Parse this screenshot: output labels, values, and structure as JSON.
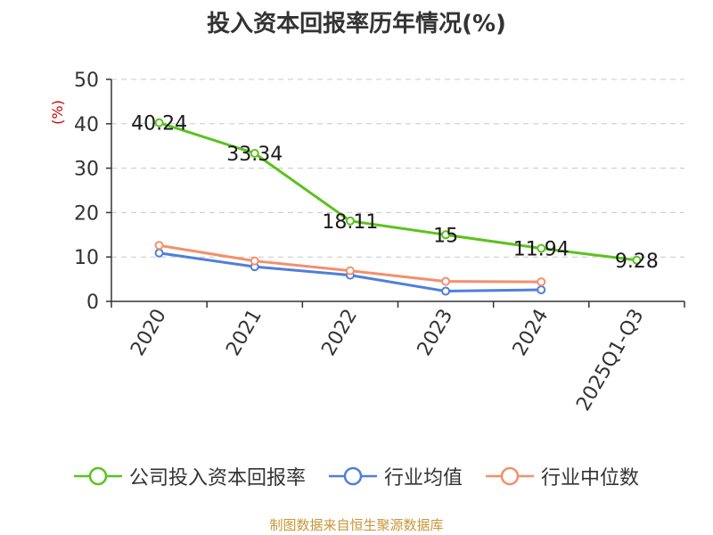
{
  "chart_data": {
    "type": "line",
    "title": "投入资本回报率历年情况(%)",
    "ylabel": "(%)",
    "xlabel": "",
    "categories": [
      "2020",
      "2021",
      "2022",
      "2023",
      "2024",
      "2025Q1-Q3"
    ],
    "ylim": [
      0,
      50
    ],
    "yticks": [
      0,
      10,
      20,
      30,
      40,
      50
    ],
    "grid": true,
    "legend_position": "bottom",
    "series": [
      {
        "name": "公司投入资本回报率",
        "color": "#5cc21e",
        "values": [
          40.24,
          33.34,
          18.11,
          15,
          11.94,
          9.28
        ],
        "labels": [
          "40.24",
          "33.34",
          "18.11",
          "15",
          "11.94",
          "9.28"
        ]
      },
      {
        "name": "行业均值",
        "color": "#4f7fdb",
        "values": [
          10.9,
          7.8,
          5.9,
          2.3,
          2.6,
          null
        ]
      },
      {
        "name": "行业中位数",
        "color": "#f4906a",
        "values": [
          12.6,
          9.1,
          6.9,
          4.5,
          4.4,
          null
        ]
      }
    ],
    "source": "制图数据来自恒生聚源数据库"
  }
}
